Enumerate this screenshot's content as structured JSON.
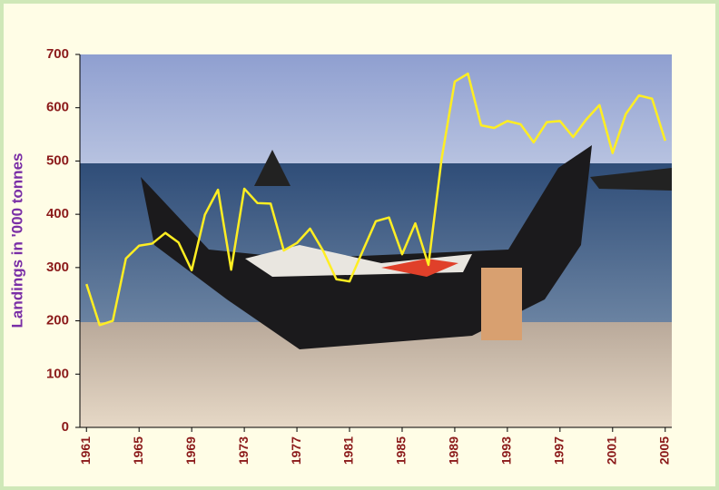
{
  "chart_data": {
    "type": "line",
    "y_label": "Landings in '000 tonnes",
    "x": [
      1961,
      1962,
      1963,
      1964,
      1965,
      1966,
      1967,
      1968,
      1969,
      1970,
      1971,
      1972,
      1973,
      1974,
      1975,
      1976,
      1977,
      1978,
      1979,
      1980,
      1981,
      1982,
      1983,
      1984,
      1985,
      1986,
      1987,
      1988,
      1989,
      1990,
      1991,
      1992,
      1993,
      1994,
      1995,
      1996,
      1997,
      1998,
      1999,
      2000,
      2001,
      2002,
      2003,
      2004,
      2005
    ],
    "values": [
      269,
      192,
      200,
      317,
      341,
      345,
      365,
      347,
      295,
      399,
      446,
      296,
      448,
      421,
      420,
      332,
      346,
      373,
      331,
      278,
      274,
      331,
      387,
      394,
      325,
      383,
      305,
      504,
      649,
      664,
      567,
      562,
      575,
      569,
      535,
      573,
      575,
      545,
      578,
      605,
      515,
      588,
      623,
      617,
      538
    ],
    "color": "#ffee22",
    "xlim": [
      1960.5,
      2005.5
    ],
    "xticks": [
      1961,
      1965,
      1969,
      1973,
      1977,
      1981,
      1985,
      1989,
      1993,
      1997,
      2001,
      2005
    ],
    "ylim": [
      0,
      700
    ],
    "yticks": [
      0,
      100,
      200,
      300,
      400,
      500,
      600,
      700
    ]
  }
}
